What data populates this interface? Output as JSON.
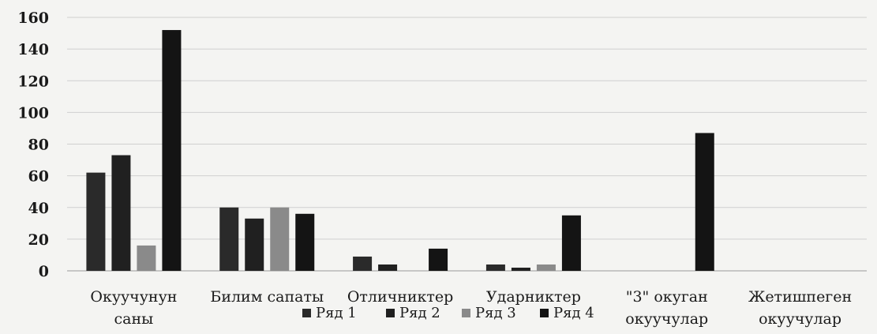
{
  "chart_data": {
    "type": "bar",
    "categories": [
      [
        "Окуучунун",
        "саны"
      ],
      [
        "Билим сапаты"
      ],
      [
        "Отличниктер"
      ],
      [
        "Ударниктер"
      ],
      [
        "\"3\" окуган",
        "окуучулар"
      ],
      [
        "Жетишпеген",
        "окуучулар"
      ]
    ],
    "series": [
      {
        "name": "Ряд 1",
        "color": "#2a2a2a",
        "values": [
          62,
          40,
          9,
          4,
          null,
          null
        ]
      },
      {
        "name": "Ряд 2",
        "color": "#202020",
        "values": [
          73,
          33,
          4,
          2,
          null,
          null
        ]
      },
      {
        "name": "Ряд 3",
        "color": "#8a8a8a",
        "values": [
          16,
          40,
          null,
          4,
          null,
          null
        ]
      },
      {
        "name": "Ряд 4",
        "color": "#141414",
        "values": [
          152,
          36,
          14,
          35,
          87,
          null
        ]
      }
    ],
    "ylim": [
      0,
      160
    ],
    "yticks": [
      0,
      20,
      40,
      60,
      80,
      100,
      120,
      140,
      160
    ],
    "grid": true,
    "legend_position": "bottom"
  }
}
